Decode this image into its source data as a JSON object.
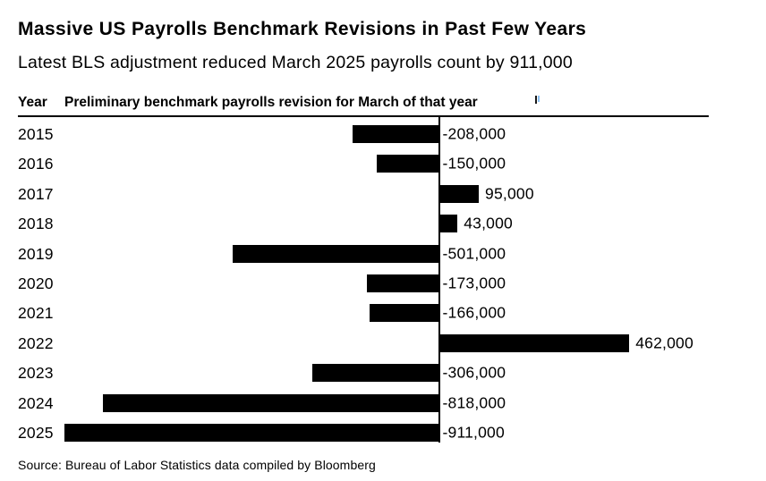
{
  "header": {
    "title": "Massive US Payrolls Benchmark Revisions in Past Few Years",
    "subtitle": "Latest BLS adjustment reduced March 2025 payrolls count by 911,000"
  },
  "columns": {
    "year": "Year",
    "value": "Preliminary benchmark payrolls revision for March of that year"
  },
  "chart_data": {
    "type": "bar",
    "orientation": "horizontal",
    "title": "Massive US Payrolls Benchmark Revisions in Past Few Years",
    "subtitle": "Latest BLS adjustment reduced March 2025 payrolls count by 911,000",
    "categories": [
      "2015",
      "2016",
      "2017",
      "2018",
      "2019",
      "2020",
      "2021",
      "2022",
      "2023",
      "2024",
      "2025"
    ],
    "values": [
      -208000,
      -150000,
      95000,
      43000,
      -501000,
      -173000,
      -166000,
      462000,
      -306000,
      -818000,
      -911000
    ],
    "value_labels": [
      "-208,000",
      "-150,000",
      "95,000",
      "43,000",
      "-501,000",
      "-173,000",
      "-166,000",
      "462,000",
      "-306,000",
      "-818,000",
      "-911,000"
    ],
    "xlabel": "Preliminary benchmark payrolls revision for March of that year",
    "ylabel": "Year",
    "xlim": [
      -911000,
      660000
    ],
    "bar_color": "#000000",
    "zero_line": true,
    "grid": false,
    "legend": "none"
  },
  "footer": {
    "source": "Source: Bureau of Labor Statistics data compiled by Bloomberg"
  },
  "colors": {
    "background": "#ffffff",
    "bar": "#000000",
    "text": "#000000",
    "axis": "#000000"
  }
}
